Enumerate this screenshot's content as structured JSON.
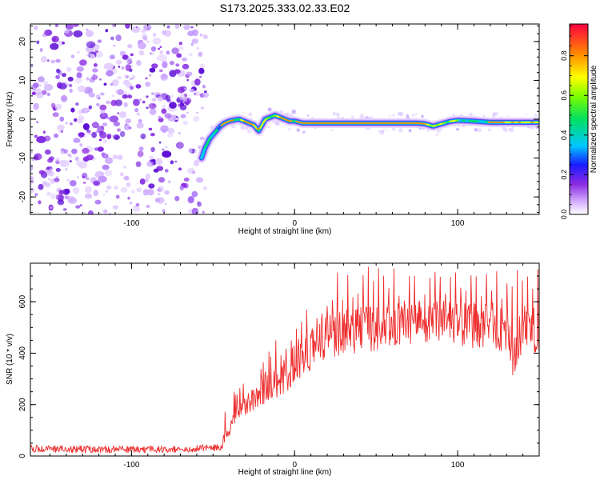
{
  "title": "S173.2025.333.02.33.E02",
  "chart_data": [
    {
      "type": "heatmap",
      "name": "spectrogram",
      "xlabel": "Height of straight line (km)",
      "ylabel": "Frequency (Hz)",
      "xlim": [
        -162,
        150
      ],
      "ylim": [
        -24.5,
        24.5
      ],
      "xticks": [
        -100,
        0,
        100
      ],
      "yticks": [
        -20,
        -10,
        0,
        10,
        20
      ],
      "noise_region_x": [
        -162,
        -57
      ],
      "signal_track": {
        "x": [
          -57,
          -55,
          -52,
          -49,
          -46,
          -43,
          -40,
          -37,
          -34,
          -31,
          -28,
          -25,
          -22,
          -20,
          -18,
          -15,
          -12,
          -9,
          -6,
          -3,
          0,
          5,
          10,
          20,
          40,
          60,
          75,
          80,
          85,
          90,
          95,
          100,
          110,
          120,
          130,
          140,
          150
        ],
        "freq": [
          -10,
          -7.5,
          -5,
          -3.5,
          -2,
          -1,
          -0.5,
          -0.2,
          0,
          -0.5,
          -1,
          -1.5,
          -3,
          -1.5,
          0,
          0.5,
          1,
          0.5,
          0,
          -0.5,
          -0.5,
          -1,
          -1,
          -1,
          -1,
          -1,
          -1,
          -1.2,
          -1.8,
          -1.2,
          -0.6,
          -0.3,
          -0.5,
          -0.8,
          -0.8,
          -0.8,
          -0.8
        ]
      },
      "colorbar": {
        "label": "Normalized spectral amplitude",
        "range": [
          0.0,
          0.96
        ],
        "ticks": [
          0.0,
          0.2,
          0.4,
          0.6,
          0.8
        ]
      }
    },
    {
      "type": "line",
      "name": "snr",
      "xlabel": "Height of straight line (km)",
      "ylabel": "SNR (10 * v/v)",
      "xlim": [
        -162,
        150
      ],
      "ylim": [
        0,
        750
      ],
      "xticks": [
        -100,
        0,
        100
      ],
      "yticks": [
        0,
        200,
        400,
        600
      ],
      "color": "#ee2b2b",
      "series": [
        {
          "name": "SNR",
          "x": [
            -162,
            -140,
            -120,
            -100,
            -80,
            -60,
            -45,
            -40,
            -35,
            -30,
            -25,
            -20,
            -15,
            -10,
            -5,
            0,
            10,
            20,
            30,
            40,
            50,
            60,
            70,
            80,
            90,
            100,
            110,
            120,
            130,
            133,
            140,
            150
          ],
          "y": [
            25,
            22,
            22,
            22,
            22,
            25,
            30,
            100,
            170,
            200,
            220,
            250,
            270,
            290,
            320,
            360,
            420,
            470,
            480,
            490,
            500,
            510,
            520,
            520,
            530,
            510,
            510,
            510,
            490,
            380,
            500,
            490
          ],
          "spike_peaks_range": [
            600,
            740
          ]
        }
      ]
    }
  ]
}
